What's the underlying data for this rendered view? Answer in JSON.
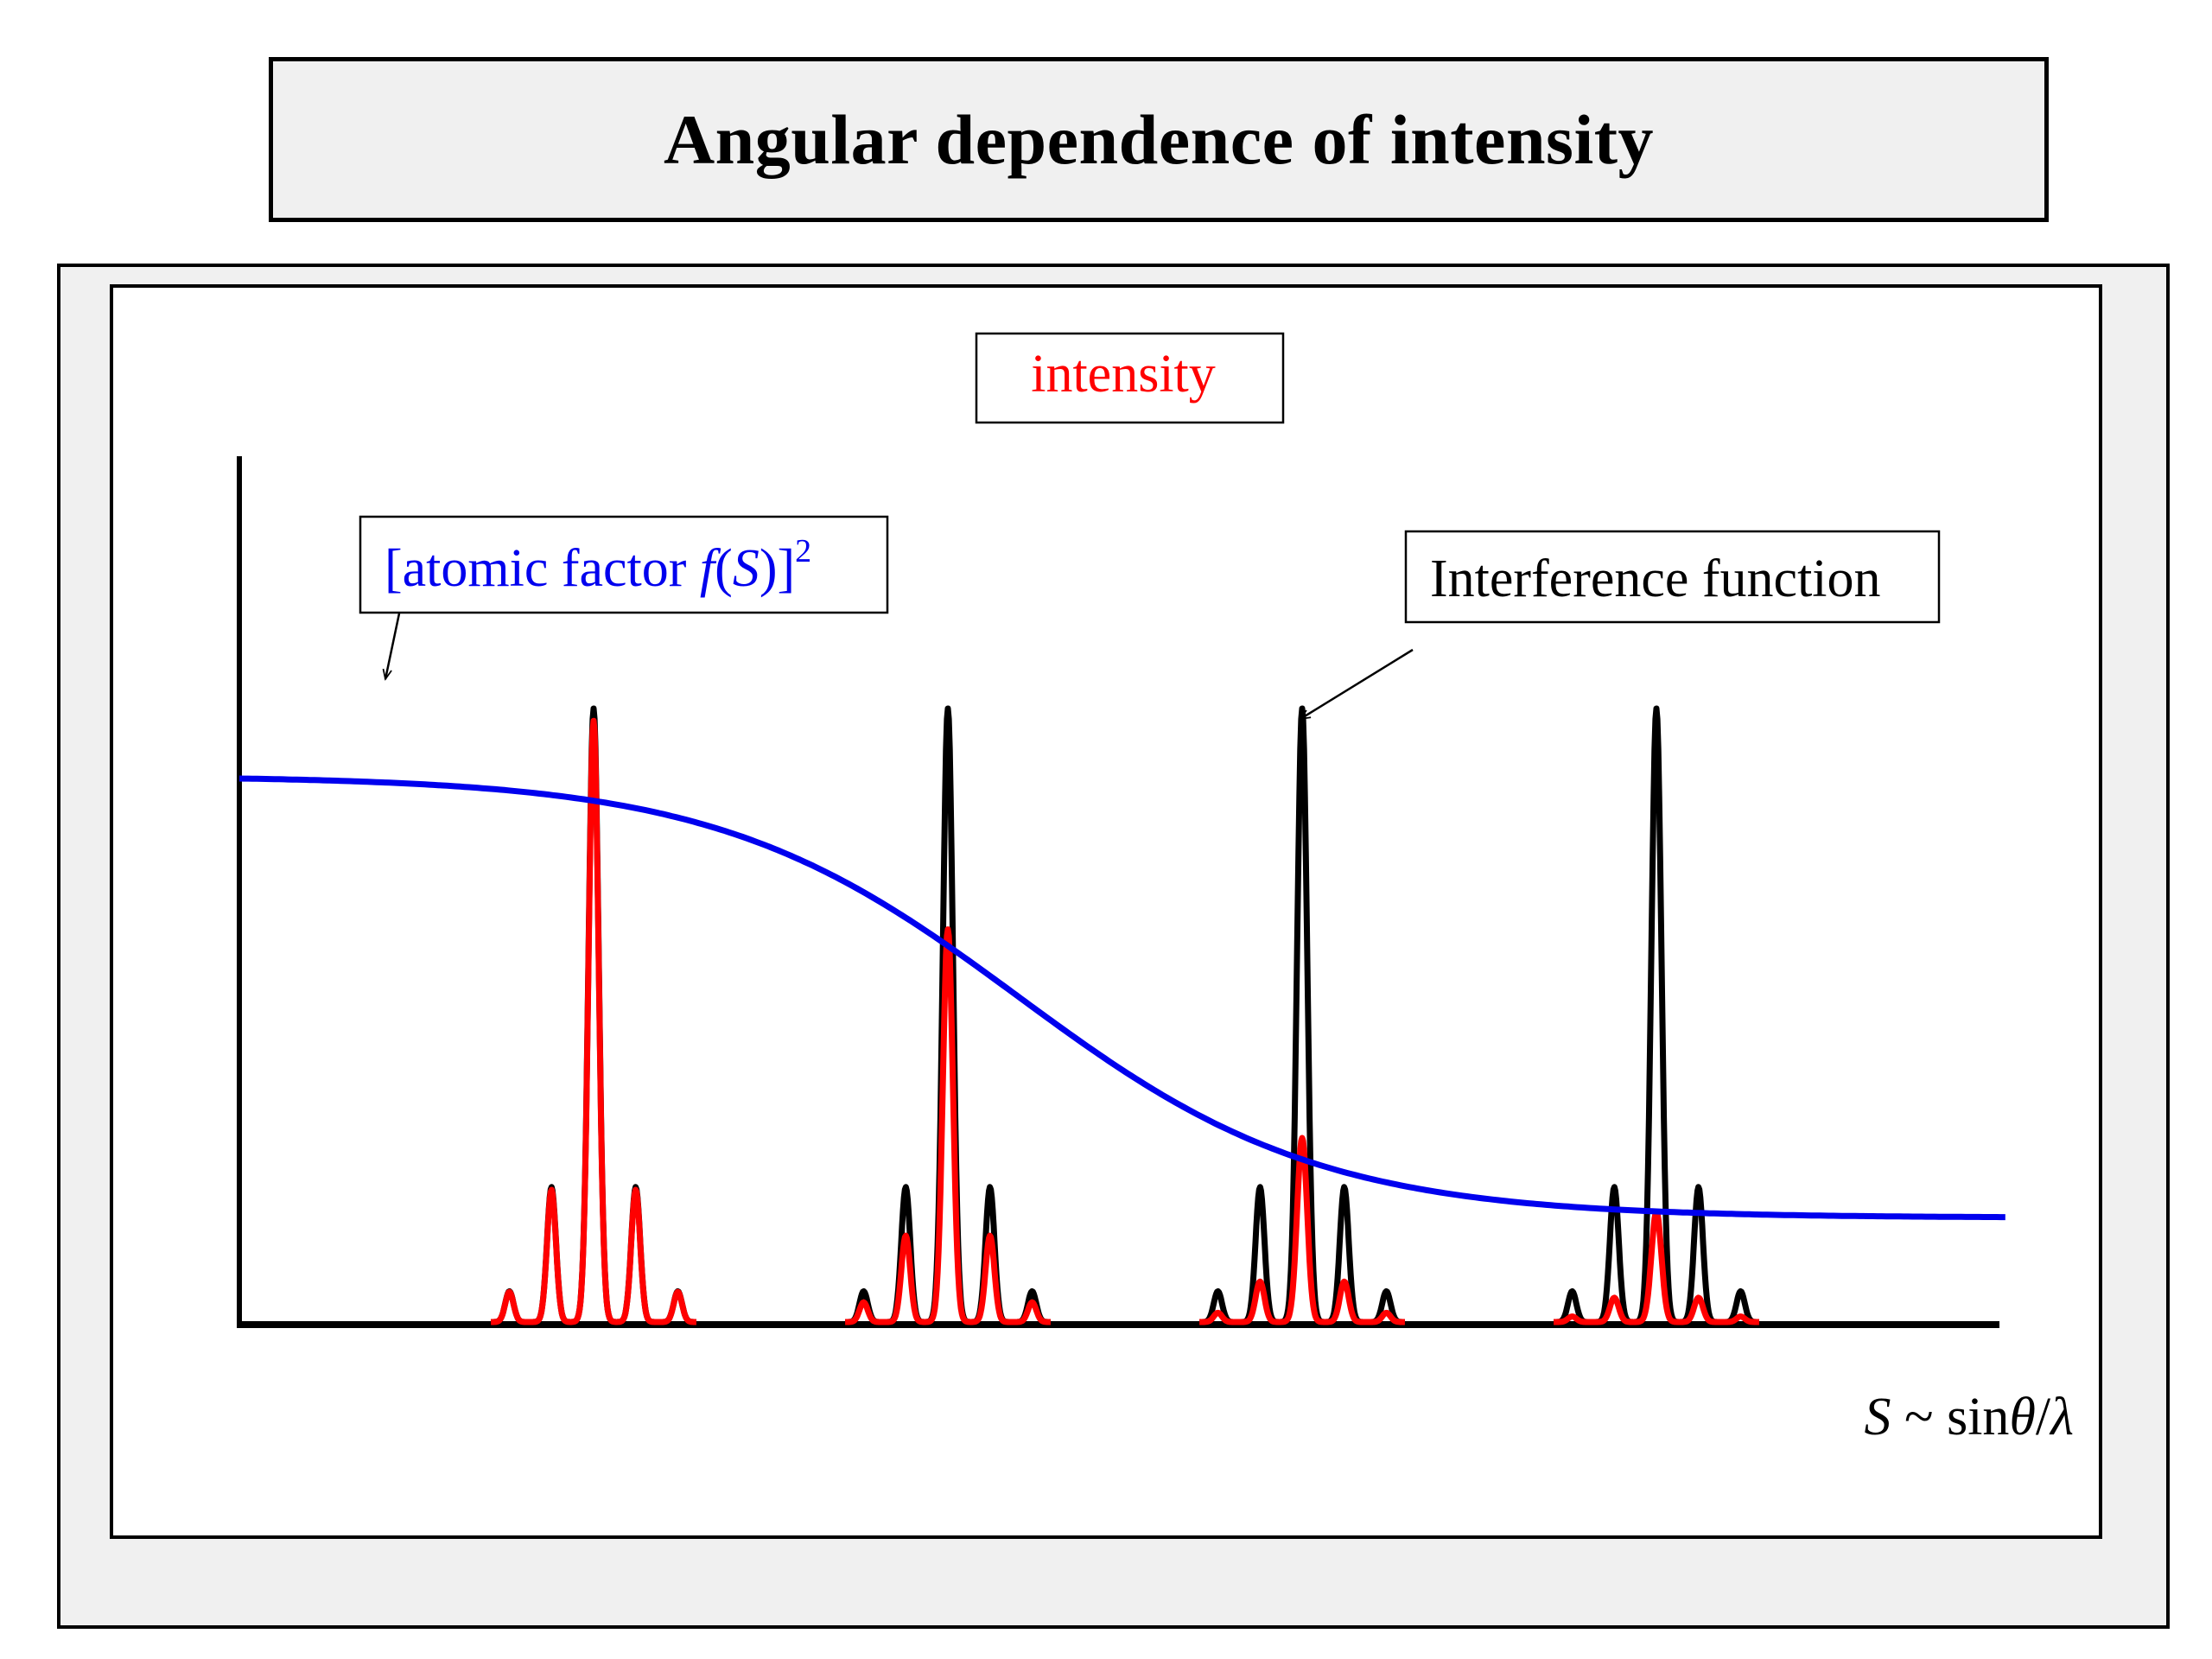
{
  "title": "Angular dependence of intensity",
  "labels": {
    "intensity": "intensity",
    "atomic_factor_prefix": "[atomic factor ",
    "atomic_factor_f": "f",
    "atomic_factor_open": "(",
    "atomic_factor_S": "S",
    "atomic_factor_close": ")]",
    "atomic_factor_exp": "2",
    "interference": "Interference function",
    "xaxis_S": "S",
    "xaxis_tilde": " ~ sin",
    "xaxis_theta": "θ",
    "xaxis_slash": "/",
    "xaxis_lambda": "λ"
  },
  "colors": {
    "atomic_factor": "#0000ee",
    "intensity": "#ff0000",
    "interference": "#000000",
    "axes": "#000000",
    "panel_background": "#f0f0f0"
  },
  "chart_data": {
    "type": "line",
    "x_range": [
      0,
      1
    ],
    "y_range": [
      0,
      1
    ],
    "grid": false,
    "series": [
      {
        "key": "atomic",
        "kind": "curve",
        "description_levels": {
          "start": 0.89,
          "end": 0.17,
          "midpoint_x": 0.44
        }
      },
      {
        "key": "interference",
        "kind": "peaks",
        "peak_centers": [
          0.2,
          0.4,
          0.6,
          0.8
        ],
        "main_peak": 1.0,
        "side_peak": 0.22,
        "outer_peak": 0.05
      },
      {
        "key": "intensity",
        "kind": "peaks",
        "peak_centers": [
          0.2,
          0.4,
          0.6,
          0.8
        ],
        "main_peak_scaled": [
          0.98,
          0.64,
          0.3,
          0.18
        ]
      }
    ]
  }
}
